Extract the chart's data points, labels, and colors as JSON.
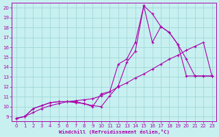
{
  "background_color": "#c8f0f0",
  "grid_color": "#a0d8d8",
  "line_color": "#aa00aa",
  "xlim": [
    -0.5,
    23.5
  ],
  "ylim": [
    8.5,
    20.5
  ],
  "xticks": [
    0,
    1,
    2,
    3,
    4,
    5,
    6,
    7,
    8,
    9,
    10,
    11,
    12,
    13,
    14,
    15,
    16,
    17,
    18,
    19,
    20,
    21,
    22,
    23
  ],
  "yticks": [
    9,
    10,
    11,
    12,
    13,
    14,
    15,
    16,
    17,
    18,
    19,
    20
  ],
  "xlabel": "Windchill (Refroidissement éolien,°C)",
  "line1_x": [
    0,
    1,
    2,
    3,
    4,
    5,
    6,
    7,
    8,
    9,
    10,
    11,
    12,
    13,
    14,
    15,
    16,
    17,
    18,
    19,
    20,
    21,
    22,
    23
  ],
  "line1_y": [
    8.8,
    9.0,
    9.8,
    10.1,
    10.4,
    10.5,
    10.5,
    10.4,
    10.3,
    10.1,
    10.0,
    11.1,
    12.1,
    14.5,
    15.6,
    20.2,
    19.4,
    18.1,
    17.5,
    16.3,
    13.1,
    13.1,
    13.1,
    13.1
  ],
  "line2_x": [
    0,
    1,
    2,
    3,
    4,
    5,
    6,
    7,
    8,
    9,
    10,
    11,
    12,
    13,
    14,
    15,
    16,
    17,
    18,
    19,
    20,
    21,
    22,
    23
  ],
  "line2_y": [
    8.8,
    9.0,
    9.8,
    10.1,
    10.4,
    10.5,
    10.5,
    10.5,
    10.3,
    10.0,
    11.3,
    11.5,
    14.3,
    14.8,
    16.5,
    20.2,
    16.5,
    18.1,
    17.5,
    16.3,
    14.8,
    13.1,
    13.1,
    13.1
  ],
  "line3_x": [
    0,
    1,
    2,
    3,
    4,
    5,
    6,
    7,
    8,
    9,
    10,
    11,
    12,
    13,
    14,
    15,
    16,
    17,
    18,
    19,
    20,
    21,
    22,
    23
  ],
  "line3_y": [
    8.8,
    9.0,
    9.4,
    9.8,
    10.1,
    10.3,
    10.5,
    10.6,
    10.7,
    10.8,
    11.1,
    11.5,
    12.0,
    12.4,
    12.9,
    13.3,
    13.8,
    14.3,
    14.8,
    15.2,
    15.7,
    16.1,
    16.5,
    13.1
  ]
}
